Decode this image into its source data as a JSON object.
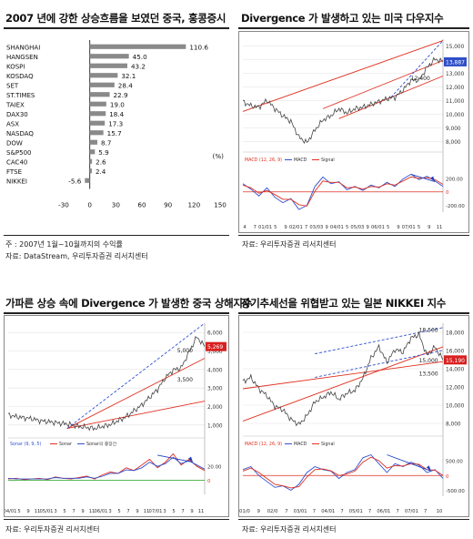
{
  "panels": {
    "p1": {
      "title": "2007 년에 강한 상승흐름을 보였던 중국, 홍콩증시",
      "note1": "주 : 2007년 1월~10월까지의 수익률",
      "note2": "자료: DataStream, 우리투자증권 리서치센터"
    },
    "p2": {
      "title": "Divergence 가 발생하고 있는 미국 다우지수",
      "note": "자료: 우리투자증권 리서치센터",
      "price_tag": "13,887",
      "label_a": "12,400"
    },
    "p3": {
      "title": "가파른 상승 속에 Divergence 가 발생한 중국 상해지수",
      "note": "자료: 우리투자증권 리서치센터",
      "price_tag": "5,269",
      "label_a": "5,000",
      "label_b": "3,500"
    },
    "p4": {
      "title": "장기추세선을 위협받고 있는 일본 NIKKEI 지수",
      "note": "자료: 우리투자증권 리서치센터",
      "price_tag": "15,190",
      "label_a": "18,500",
      "label_b": "15,000",
      "label_c": "13,500"
    }
  },
  "chart_data": [
    {
      "type": "bar",
      "orientation": "horizontal",
      "categories": [
        "SHANGHAI",
        "HANGSEN",
        "KOSPI",
        "KOSDAQ",
        "SET",
        "ST.TIMES",
        "TAIEX",
        "DAX30",
        "ASX",
        "NASDAQ",
        "DOW",
        "S&P500",
        "CAC40",
        "FTSE",
        "NIKKEI"
      ],
      "values": [
        110.6,
        45.0,
        43.2,
        32.1,
        28.4,
        22.9,
        19.0,
        18.4,
        17.3,
        15.7,
        8.7,
        5.9,
        2.6,
        2.4,
        -5.6
      ],
      "value_labels": [
        "110.6",
        "45.0",
        "43.2",
        "32.1",
        "28.4",
        "22.9",
        "19.0",
        "18.4",
        "17.3",
        "15.7",
        "8.7",
        "5.9",
        "2.6",
        "2.4",
        "-5.6"
      ],
      "xlim": [
        -30,
        150
      ],
      "xticks": [
        "-30",
        "0",
        "30",
        "60",
        "90",
        "120",
        "150"
      ],
      "unit": "(%)",
      "bar_color": "#8a8a8a"
    },
    {
      "type": "line",
      "price": {
        "yticks": [
          "15,000",
          "14,000",
          "13,000",
          "12,000",
          "11,000",
          "10,000",
          "9,000",
          "8,000"
        ],
        "ylim": [
          7600,
          15300
        ],
        "x": [
          0,
          4,
          8,
          12,
          16,
          20,
          24,
          28,
          32,
          36,
          40,
          44,
          48,
          52,
          56,
          60,
          64,
          68,
          72,
          76,
          80,
          84,
          88,
          92,
          96,
          100
        ],
        "values": [
          10900,
          10600,
          10500,
          11000,
          10400,
          9900,
          9500,
          8400,
          8000,
          8900,
          9600,
          9900,
          10400,
          10100,
          10400,
          10500,
          10700,
          10900,
          11100,
          11200,
          11700,
          12400,
          12400,
          13300,
          13900,
          13700
        ]
      },
      "indicator": {
        "legend": [
          "MACD (12, 26, 9)",
          "MACD",
          "Signal"
        ],
        "yticks": [
          "200.00",
          "0",
          "-200.00"
        ],
        "ylim": [
          -300,
          400
        ],
        "x": [
          0,
          4,
          8,
          12,
          16,
          20,
          24,
          28,
          32,
          36,
          40,
          44,
          48,
          52,
          56,
          60,
          64,
          68,
          72,
          76,
          80,
          84,
          88,
          92,
          96,
          100
        ],
        "macd": [
          120,
          40,
          -60,
          60,
          -80,
          -160,
          -100,
          -260,
          -200,
          80,
          220,
          120,
          150,
          30,
          80,
          20,
          100,
          60,
          140,
          80,
          190,
          260,
          180,
          230,
          160,
          80
        ],
        "signal": [
          100,
          60,
          -20,
          20,
          -40,
          -110,
          -110,
          -190,
          -210,
          10,
          160,
          140,
          140,
          60,
          70,
          40,
          80,
          70,
          120,
          100,
          160,
          220,
          200,
          210,
          180,
          110
        ]
      },
      "xticks": [
        "4",
        "7",
        "01/01",
        "5",
        "9",
        "02/01",
        "7",
        "03/03",
        "9",
        "04/01",
        "5",
        "05/03",
        "9",
        "06/01",
        "5",
        "9",
        "07/01",
        "5",
        "9",
        "11"
      ],
      "colors": {
        "price": "#444444",
        "trend": "#e03020",
        "guide": "#3050d0",
        "macd": "#3050d0",
        "signal": "#e03020"
      }
    },
    {
      "type": "line",
      "price": {
        "yticks": [
          "6,000",
          "5,000",
          "4,000",
          "3,000",
          "2,000",
          "1,000"
        ],
        "ylim": [
          800,
          6500
        ],
        "x": [
          0,
          4,
          8,
          12,
          16,
          20,
          24,
          28,
          32,
          36,
          40,
          44,
          48,
          52,
          56,
          60,
          64,
          68,
          72,
          76,
          80,
          84,
          88,
          92,
          96,
          100
        ],
        "values": [
          1800,
          1700,
          1650,
          1600,
          1500,
          1450,
          1400,
          1350,
          1300,
          1200,
          1150,
          1100,
          1200,
          1300,
          1500,
          1700,
          2000,
          2300,
          2700,
          3100,
          3700,
          4100,
          4200,
          5000,
          5800,
          5300
        ]
      },
      "indicator": {
        "legend": [
          "Sonar (9, 9, 5)",
          "Sonar",
          "Sonar의 중장간"
        ],
        "yticks": [
          "20.00",
          "0"
        ],
        "ylim": [
          -20,
          45
        ],
        "x": [
          0,
          4,
          8,
          12,
          16,
          20,
          24,
          28,
          32,
          36,
          40,
          44,
          48,
          52,
          56,
          60,
          64,
          68,
          72,
          76,
          80,
          84,
          88,
          92,
          96,
          100
        ],
        "sonar": [
          2,
          3,
          1,
          2,
          3,
          1,
          5,
          3,
          2,
          4,
          6,
          2,
          8,
          12,
          10,
          18,
          14,
          22,
          30,
          18,
          26,
          38,
          22,
          30,
          20,
          14
        ],
        "signal": [
          3,
          2,
          2,
          2,
          2,
          2,
          4,
          3,
          3,
          3,
          5,
          3,
          6,
          10,
          10,
          15,
          14,
          18,
          26,
          20,
          24,
          33,
          24,
          28,
          22,
          16
        ]
      },
      "xticks": [
        "04/01",
        "5",
        "9",
        "11",
        "05/01",
        "3",
        "5",
        "7",
        "9",
        "11",
        "06/01",
        "3",
        "5",
        "7",
        "9",
        "11",
        "07/01",
        "3",
        "5",
        "7",
        "9",
        "11"
      ],
      "colors": {
        "price": "#444444",
        "trend": "#e03020",
        "guide": "#3050d0",
        "sonar": "#e03020",
        "signal": "#3050d0",
        "zero": "#20a020"
      }
    },
    {
      "type": "line",
      "price": {
        "yticks": [
          "18,000",
          "16,000",
          "14,000",
          "12,000",
          "10,000",
          "8,000"
        ],
        "ylim": [
          7000,
          19500
        ],
        "x": [
          0,
          4,
          8,
          12,
          16,
          20,
          24,
          28,
          32,
          36,
          40,
          44,
          48,
          52,
          56,
          60,
          64,
          68,
          72,
          76,
          80,
          84,
          88,
          92,
          96,
          100
        ],
        "values": [
          12800,
          13300,
          12000,
          11200,
          10000,
          9600,
          8500,
          7900,
          8900,
          10500,
          11000,
          11600,
          10800,
          11500,
          11800,
          13200,
          15500,
          16800,
          15000,
          16500,
          16200,
          17800,
          18200,
          15800,
          16800,
          15300
        ]
      },
      "indicator": {
        "legend": [
          "MACD (12, 26, 9)",
          "MACD",
          "Signal"
        ],
        "yticks": [
          "500.00",
          "0",
          "-500.00"
        ],
        "ylim": [
          -700,
          900
        ],
        "x": [
          0,
          4,
          8,
          12,
          16,
          20,
          24,
          28,
          32,
          36,
          40,
          44,
          48,
          52,
          56,
          60,
          64,
          68,
          72,
          76,
          80,
          84,
          88,
          92,
          96,
          100
        ],
        "macd": [
          200,
          300,
          0,
          -200,
          -400,
          -350,
          -500,
          -300,
          100,
          300,
          200,
          150,
          -100,
          100,
          200,
          600,
          700,
          400,
          100,
          400,
          300,
          450,
          350,
          100,
          200,
          -100
        ],
        "signal": [
          150,
          250,
          100,
          -100,
          -300,
          -350,
          -420,
          -380,
          -50,
          200,
          220,
          160,
          0,
          50,
          150,
          450,
          620,
          500,
          250,
          330,
          320,
          400,
          380,
          200,
          180,
          0
        ]
      },
      "xticks": [
        "01/0",
        "9",
        "02/0",
        "7",
        "03/01",
        "7",
        "04/01",
        "7",
        "05/01",
        "7",
        "06/01",
        "7",
        "07/01",
        "7",
        "10"
      ],
      "colors": {
        "price": "#444444",
        "trend": "#e03020",
        "guide": "#3050d0",
        "macd": "#3050d0",
        "signal": "#e03020"
      }
    }
  ]
}
